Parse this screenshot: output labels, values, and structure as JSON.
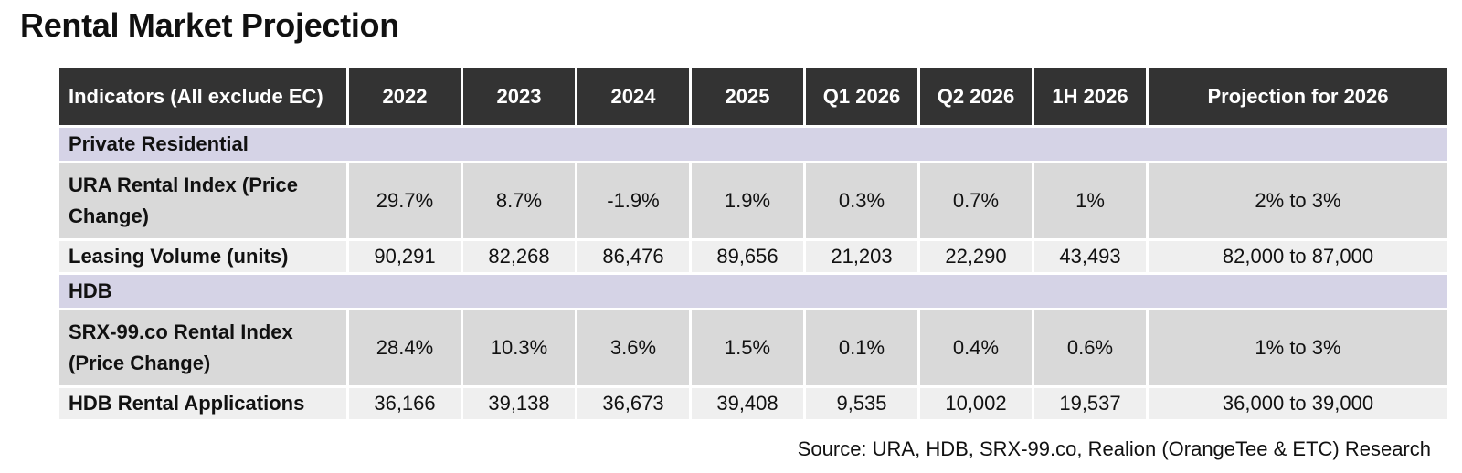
{
  "title": "Rental Market Projection",
  "table": {
    "headers": [
      "Indicators (All exclude EC)",
      "2022",
      "2023",
      "2024",
      "2025",
      "Q1 2026",
      "Q2 2026",
      "1H 2026",
      "Projection for 2026"
    ],
    "sections": [
      {
        "name": "Private Residential",
        "rows": [
          {
            "label": "URA Rental Index (Price Change)",
            "values": [
              "29.7%",
              "8.7%",
              "-1.9%",
              "1.9%",
              "0.3%",
              "0.7%",
              "1%",
              "2% to 3%"
            ]
          },
          {
            "label": "Leasing Volume (units)",
            "values": [
              "90,291",
              "82,268",
              "86,476",
              "89,656",
              "21,203",
              "22,290",
              "43,493",
              "82,000 to 87,000"
            ]
          }
        ]
      },
      {
        "name": "HDB",
        "rows": [
          {
            "label": "SRX-99.co Rental Index (Price Change)",
            "values": [
              "28.4%",
              "10.3%",
              "3.6%",
              "1.5%",
              "0.1%",
              "0.4%",
              "0.6%",
              "1% to 3%"
            ]
          },
          {
            "label": "HDB Rental Applications",
            "values": [
              "36,166",
              "39,138",
              "36,673",
              "39,408",
              "9,535",
              "10,002",
              "19,537",
              "36,000 to 39,000"
            ]
          }
        ]
      }
    ]
  },
  "source": "Source: URA, HDB, SRX-99.co, Realion (OrangeTee & ETC) Research",
  "colors": {
    "header_bg": "#333333",
    "section_bg": "#d5d3e6",
    "tall_row_bg": "#d9d9d9",
    "short_row_bg": "#efefef"
  }
}
